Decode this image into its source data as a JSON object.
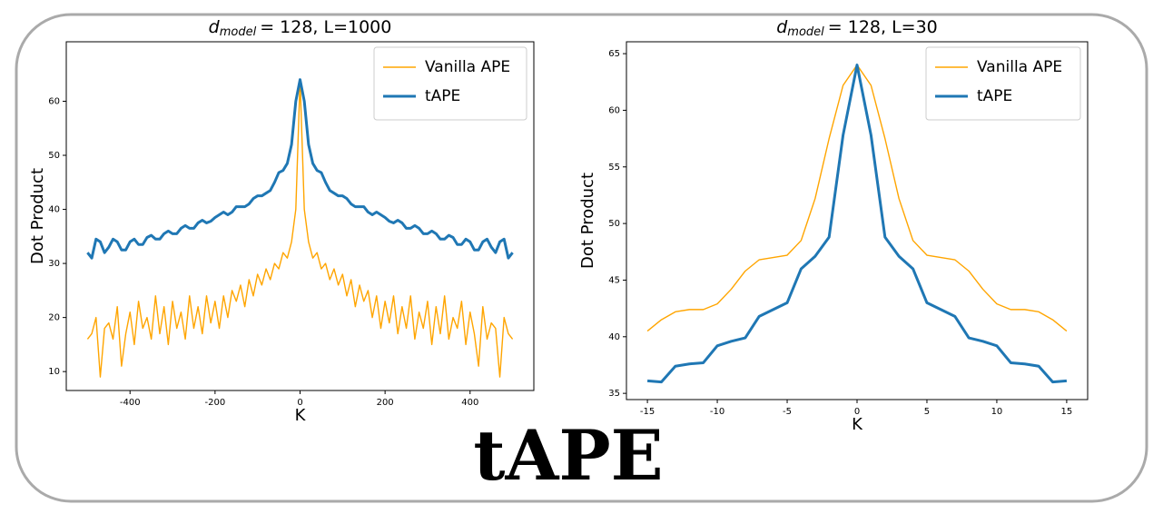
{
  "chart_data": [
    {
      "type": "line",
      "title_var": "d",
      "title_sub": "model",
      "title_rest": "= 128, L=1000",
      "xlabel": "K",
      "ylabel": "Dot Product",
      "x": [
        -500,
        -490,
        -480,
        -470,
        -460,
        -450,
        -440,
        -430,
        -420,
        -410,
        -400,
        -390,
        -380,
        -370,
        -360,
        -350,
        -340,
        -330,
        -320,
        -310,
        -300,
        -290,
        -280,
        -270,
        -260,
        -250,
        -240,
        -230,
        -220,
        -210,
        -200,
        -190,
        -180,
        -170,
        -160,
        -150,
        -140,
        -130,
        -120,
        -110,
        -100,
        -90,
        -80,
        -70,
        -60,
        -50,
        -40,
        -30,
        -20,
        -10,
        0,
        10,
        20,
        30,
        40,
        50,
        60,
        70,
        80,
        90,
        100,
        110,
        120,
        130,
        140,
        150,
        160,
        170,
        180,
        190,
        200,
        210,
        220,
        230,
        240,
        250,
        260,
        270,
        280,
        290,
        300,
        310,
        320,
        330,
        340,
        350,
        360,
        370,
        380,
        390,
        400,
        410,
        420,
        430,
        440,
        450,
        460,
        470,
        480,
        490,
        500
      ],
      "series": [
        {
          "name": "Vanilla APE",
          "color": "#ffa500",
          "width": 1.4,
          "values": [
            16,
            17,
            20,
            9,
            18,
            19,
            16,
            22,
            11,
            17,
            21,
            15,
            23,
            18,
            20,
            16,
            24,
            17,
            22,
            15,
            23,
            18,
            21,
            16,
            24,
            18,
            22,
            17,
            24,
            19,
            23,
            18,
            24,
            20,
            25,
            23,
            26,
            22,
            27,
            24,
            28,
            26,
            29,
            27,
            30,
            29,
            32,
            31,
            34,
            40,
            64,
            40,
            34,
            31,
            32,
            29,
            30,
            27,
            29,
            26,
            28,
            24,
            27,
            22,
            26,
            23,
            25,
            20,
            24,
            18,
            23,
            19,
            24,
            17,
            22,
            18,
            24,
            16,
            21,
            18,
            23,
            15,
            22,
            17,
            24,
            16,
            20,
            18,
            23,
            15,
            21,
            17,
            11,
            22,
            16,
            19,
            18,
            9,
            20,
            17,
            16
          ]
        },
        {
          "name": "tAPE",
          "color": "#1f77b4",
          "width": 3,
          "values": [
            32,
            31,
            34.5,
            34,
            32,
            33,
            34.5,
            34,
            32.5,
            32.5,
            34,
            34.5,
            33.5,
            33.5,
            34.8,
            35.2,
            34.5,
            34.5,
            35.5,
            36,
            35.5,
            35.5,
            36.5,
            37,
            36.5,
            36.5,
            37.5,
            38,
            37.5,
            37.8,
            38.5,
            39,
            39.5,
            39,
            39.5,
            40.5,
            40.5,
            40.5,
            41,
            42,
            42.5,
            42.5,
            43,
            43.5,
            45,
            46.8,
            47.2,
            48.5,
            52,
            60,
            64,
            60,
            52,
            48.5,
            47.2,
            46.8,
            45,
            43.5,
            43,
            42.5,
            42.5,
            42,
            41,
            40.5,
            40.5,
            40.5,
            39.5,
            39,
            39.5,
            39,
            38.5,
            37.8,
            37.5,
            38,
            37.5,
            36.5,
            36.5,
            37,
            36.5,
            35.5,
            35.5,
            36,
            35.5,
            34.5,
            34.5,
            35.2,
            34.8,
            33.5,
            33.5,
            34.5,
            34,
            32.5,
            32.5,
            34,
            34.5,
            33,
            32,
            34,
            34.5,
            31,
            32
          ]
        }
      ],
      "xlim": [
        -550,
        550
      ],
      "xticks": [
        -400,
        -200,
        0,
        200,
        400
      ],
      "ylim": [
        6.5,
        71
      ],
      "yticks": [
        10,
        20,
        30,
        40,
        50,
        60
      ],
      "legend": "upper right"
    },
    {
      "type": "line",
      "title_var": "d",
      "title_sub": "model",
      "title_rest": "= 128, L=30",
      "xlabel": "K",
      "ylabel": "Dot Product",
      "x": [
        -15,
        -14,
        -13,
        -12,
        -11,
        -10,
        -9,
        -8,
        -7,
        -6,
        -5,
        -4,
        -3,
        -2,
        -1,
        0,
        1,
        2,
        3,
        4,
        5,
        6,
        7,
        8,
        9,
        10,
        11,
        12,
        13,
        14,
        15
      ],
      "series": [
        {
          "name": "Vanilla APE",
          "color": "#ffa500",
          "width": 1.4,
          "values": [
            40.5,
            41.5,
            42.2,
            42.4,
            42.4,
            42.9,
            44.2,
            45.8,
            46.8,
            47.0,
            47.2,
            48.5,
            52.2,
            57.5,
            62.2,
            64,
            62.2,
            57.5,
            52.2,
            48.5,
            47.2,
            47.0,
            46.8,
            45.8,
            44.2,
            42.9,
            42.4,
            42.4,
            42.2,
            41.5,
            40.5
          ]
        },
        {
          "name": "tAPE",
          "color": "#1f77b4",
          "width": 3,
          "values": [
            36.1,
            36.0,
            37.4,
            37.6,
            37.7,
            39.2,
            39.6,
            39.9,
            41.8,
            42.4,
            43.0,
            46.0,
            47.1,
            48.8,
            57.8,
            64,
            57.8,
            48.8,
            47.1,
            46.0,
            43.0,
            42.4,
            41.8,
            39.9,
            39.6,
            39.2,
            37.7,
            37.6,
            37.4,
            36.0,
            36.1
          ]
        }
      ],
      "xlim": [
        -16.5,
        16.5
      ],
      "xticks": [
        -15,
        -10,
        -5,
        0,
        5,
        10,
        15
      ],
      "ylim": [
        34.45,
        66.05
      ],
      "yticks": [
        35,
        40,
        45,
        50,
        55,
        60,
        65
      ],
      "legend": "upper right"
    }
  ],
  "caption": "tAPE"
}
